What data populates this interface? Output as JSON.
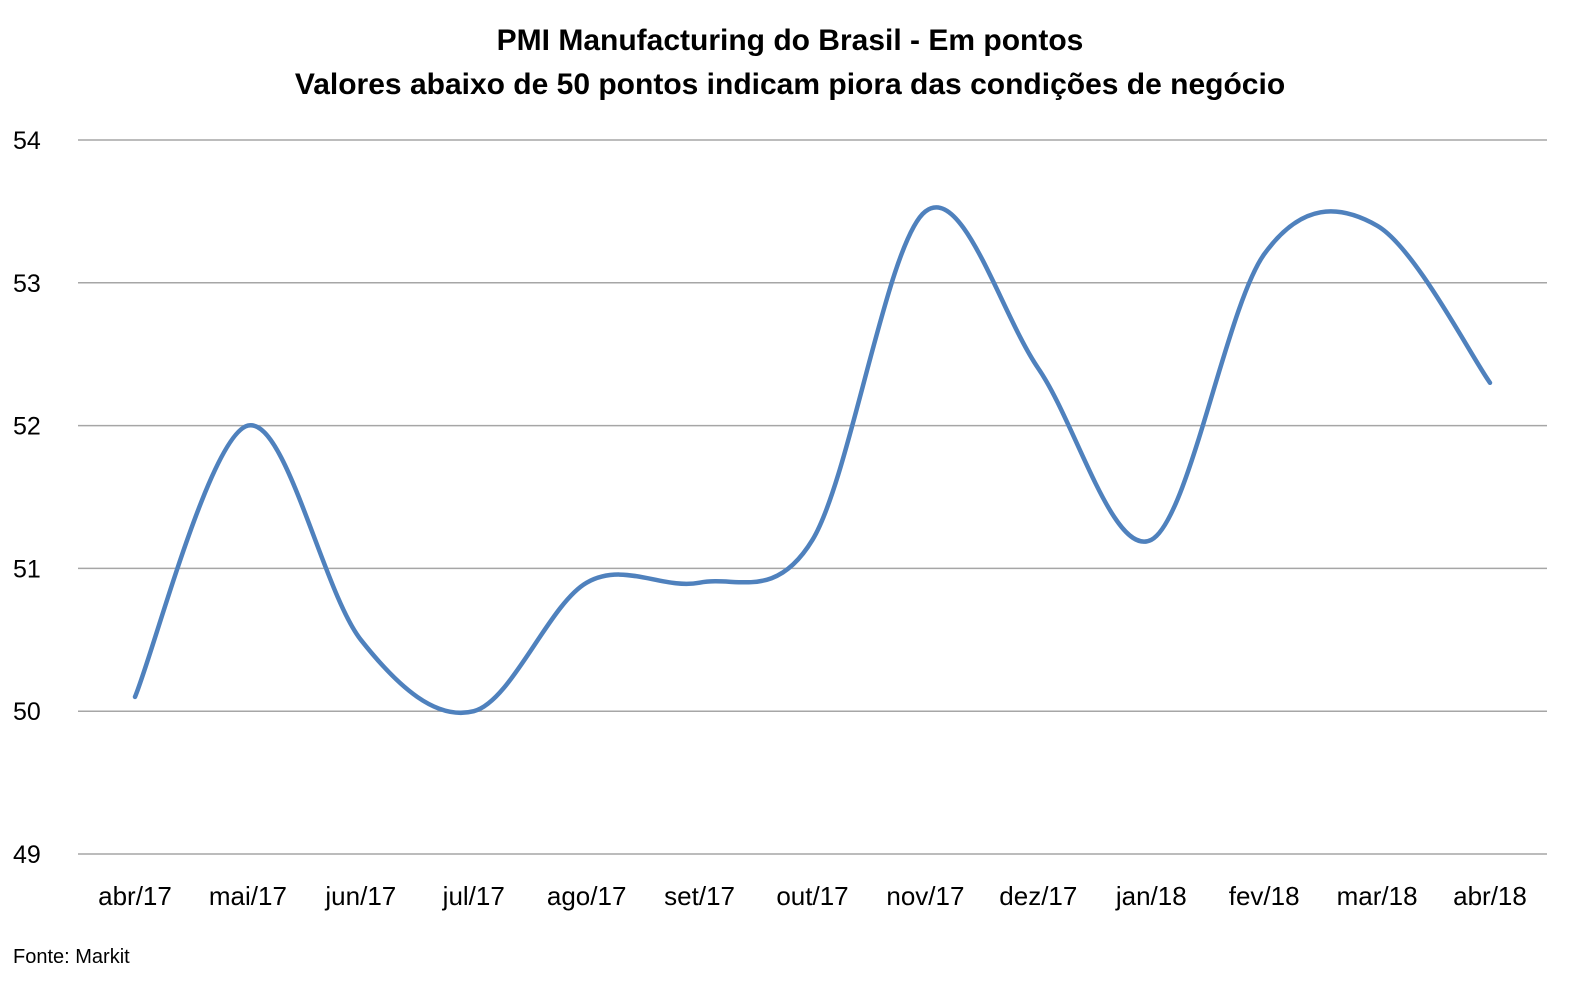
{
  "chart_data": {
    "type": "line",
    "title": "PMI Manufacturing do Brasil - Em pontos",
    "subtitle": "Valores abaixo de 50 pontos indicam piora das condições de negócio",
    "categories": [
      "abr/17",
      "mai/17",
      "jun/17",
      "jul/17",
      "ago/17",
      "set/17",
      "out/17",
      "nov/17",
      "dez/17",
      "jan/18",
      "fev/18",
      "mar/18",
      "abr/18"
    ],
    "series": [
      {
        "values": [
          50.1,
          52.0,
          50.5,
          50.0,
          50.9,
          50.9,
          51.2,
          53.5,
          52.4,
          51.2,
          53.2,
          53.4,
          52.3
        ]
      }
    ],
    "yticks": [
      "49",
      "50",
      "51",
      "52",
      "53",
      "54"
    ],
    "ylim": [
      49,
      54
    ],
    "grid": true,
    "legend": "none",
    "line_color": "#4f81bd",
    "grid_color": "#a6a6a6"
  },
  "source": "Fonte: Markit"
}
